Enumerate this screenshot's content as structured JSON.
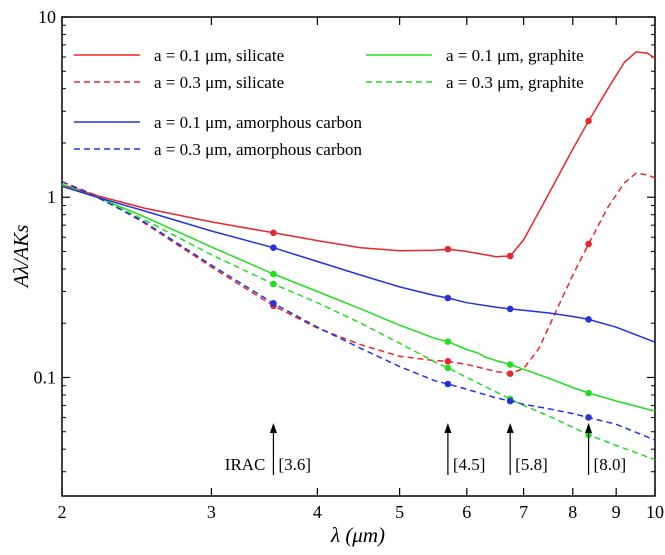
{
  "chart_data": {
    "type": "line",
    "xlabel": "λ (μm)",
    "ylabel": "Aλ/AKs",
    "xscale": "log",
    "yscale": "log",
    "xlim": [
      2,
      10
    ],
    "ylim": [
      0.022,
      10
    ],
    "x_ticks": [
      {
        "value": 2,
        "label": "2"
      },
      {
        "value": 3,
        "label": "3"
      },
      {
        "value": 4,
        "label": "4"
      },
      {
        "value": 5,
        "label": "5"
      },
      {
        "value": 6,
        "label": "6"
      },
      {
        "value": 7,
        "label": "7"
      },
      {
        "value": 8,
        "label": "8"
      },
      {
        "value": 9,
        "label": "9"
      },
      {
        "value": 10,
        "label": "10"
      }
    ],
    "y_ticks": [
      {
        "value": 0.1,
        "label": "0.1"
      },
      {
        "value": 1,
        "label": "1"
      },
      {
        "value": 10,
        "label": "10"
      }
    ],
    "legend_position": "top-left",
    "series": [
      {
        "name": "a = 0.1 μm, silicate",
        "color": "#e8262b",
        "dash": "solid",
        "x": [
          2.0,
          2.2,
          2.5,
          3.0,
          3.55,
          4.0,
          4.5,
          5.0,
          5.5,
          5.7,
          6.0,
          6.5,
          6.75,
          7.0,
          7.5,
          8.0,
          8.35,
          8.8,
          9.2,
          9.5,
          9.8,
          10.0
        ],
        "y": [
          1.18,
          1.02,
          0.87,
          0.73,
          0.635,
          0.575,
          0.525,
          0.505,
          0.508,
          0.515,
          0.5,
          0.468,
          0.472,
          0.58,
          1.05,
          1.85,
          2.65,
          4.0,
          5.6,
          6.4,
          6.3,
          5.9
        ],
        "markers_x": [
          3.55,
          5.7,
          6.75,
          8.35
        ],
        "markers_y": [
          0.635,
          0.515,
          0.472,
          2.65
        ]
      },
      {
        "name": "a = 0.3 μm, silicate",
        "color": "#e8262b",
        "dash": "dashed",
        "x": [
          2.0,
          2.2,
          2.5,
          3.0,
          3.55,
          4.0,
          4.5,
          5.0,
          5.5,
          5.7,
          6.0,
          6.5,
          6.75,
          7.0,
          7.3,
          7.6,
          8.0,
          8.35,
          8.8,
          9.2,
          9.5,
          9.8,
          10.0
        ],
        "y": [
          1.22,
          1.02,
          0.72,
          0.41,
          0.25,
          0.188,
          0.152,
          0.131,
          0.124,
          0.123,
          0.118,
          0.108,
          0.105,
          0.112,
          0.145,
          0.22,
          0.37,
          0.55,
          0.88,
          1.2,
          1.36,
          1.33,
          1.28
        ],
        "markers_x": [
          3.55,
          5.7,
          6.75,
          8.35
        ],
        "markers_y": [
          0.25,
          0.123,
          0.105,
          0.55
        ]
      },
      {
        "name": "a = 0.1 μm, graphite",
        "color": "#22dd22",
        "dash": "solid",
        "x": [
          2.0,
          2.2,
          2.5,
          3.0,
          3.55,
          4.0,
          4.5,
          5.0,
          5.5,
          5.7,
          6.0,
          6.2,
          6.3,
          6.4,
          6.5,
          6.75,
          7.0,
          7.5,
          8.0,
          8.35,
          9.0,
          10.0
        ],
        "y": [
          1.16,
          1.0,
          0.78,
          0.53,
          0.375,
          0.3,
          0.24,
          0.195,
          0.165,
          0.158,
          0.143,
          0.136,
          0.13,
          0.127,
          0.124,
          0.118,
          0.111,
          0.099,
          0.088,
          0.082,
          0.074,
          0.065
        ],
        "markers_x": [
          3.55,
          5.7,
          6.75,
          8.35
        ],
        "markers_y": [
          0.375,
          0.158,
          0.118,
          0.082
        ]
      },
      {
        "name": "a = 0.3 μm, graphite",
        "color": "#22dd22",
        "dash": "dashed",
        "x": [
          2.0,
          2.2,
          2.5,
          3.0,
          3.55,
          4.0,
          4.5,
          5.0,
          5.5,
          5.7,
          6.0,
          6.5,
          6.75,
          7.0,
          7.5,
          8.0,
          8.35,
          9.0,
          10.0
        ],
        "y": [
          1.18,
          1.0,
          0.75,
          0.48,
          0.33,
          0.26,
          0.2,
          0.155,
          0.122,
          0.113,
          0.1,
          0.083,
          0.076,
          0.07,
          0.061,
          0.053,
          0.048,
          0.042,
          0.035
        ],
        "markers_x": [
          3.55,
          5.7,
          6.75,
          8.35
        ],
        "markers_y": [
          0.33,
          0.113,
          0.076,
          0.048
        ]
      },
      {
        "name": "a = 0.1 μm, amorphous carbon",
        "color": "#2233dd",
        "dash": "solid",
        "x": [
          2.0,
          2.2,
          2.5,
          3.0,
          3.55,
          4.0,
          4.5,
          5.0,
          5.5,
          5.7,
          6.0,
          6.5,
          6.75,
          7.0,
          7.5,
          8.0,
          8.35,
          9.0,
          10.0
        ],
        "y": [
          1.15,
          1.0,
          0.84,
          0.65,
          0.525,
          0.44,
          0.37,
          0.318,
          0.285,
          0.276,
          0.26,
          0.245,
          0.24,
          0.236,
          0.228,
          0.218,
          0.21,
          0.19,
          0.157
        ],
        "markers_x": [
          3.55,
          5.7,
          6.75,
          8.35
        ],
        "markers_y": [
          0.525,
          0.276,
          0.24,
          0.21
        ]
      },
      {
        "name": "a = 0.3 μm, amorphous carbon",
        "color": "#2233dd",
        "dash": "dashed",
        "x": [
          2.0,
          2.2,
          2.5,
          3.0,
          3.55,
          4.0,
          4.5,
          5.0,
          5.5,
          5.7,
          6.0,
          6.5,
          6.75,
          7.0,
          7.5,
          8.0,
          8.35,
          9.0,
          10.0
        ],
        "y": [
          1.22,
          1.0,
          0.73,
          0.42,
          0.258,
          0.19,
          0.145,
          0.115,
          0.096,
          0.092,
          0.086,
          0.077,
          0.074,
          0.071,
          0.067,
          0.063,
          0.06,
          0.055,
          0.045
        ],
        "markers_x": [
          3.55,
          5.7,
          6.75,
          8.35
        ],
        "markers_y": [
          0.258,
          0.092,
          0.074,
          0.06
        ]
      }
    ],
    "annotations": {
      "prefix": "IRAC",
      "bands": [
        {
          "x": 3.55,
          "label": "[3.6]"
        },
        {
          "x": 5.7,
          "label": "[4.5]"
        },
        {
          "x": 6.75,
          "label": "[5.8]"
        },
        {
          "x": 8.35,
          "label": "[8.0]"
        }
      ]
    }
  }
}
